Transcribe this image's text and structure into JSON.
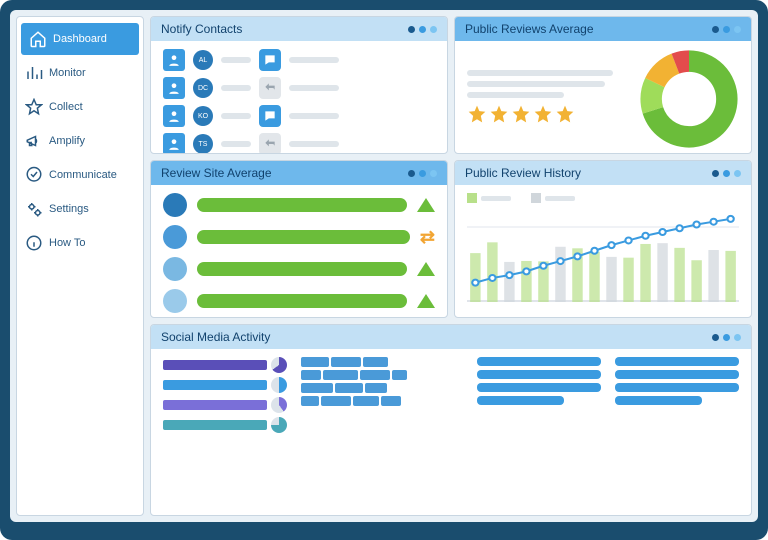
{
  "sidebar": {
    "items": [
      {
        "label": "Dashboard",
        "icon": "home",
        "active": true
      },
      {
        "label": "Monitor",
        "icon": "bars",
        "active": false
      },
      {
        "label": "Collect",
        "icon": "star",
        "active": false
      },
      {
        "label": "Amplify",
        "icon": "megaphone",
        "active": false
      },
      {
        "label": "Communicate",
        "icon": "chat-check",
        "active": false
      },
      {
        "label": "Settings",
        "icon": "gears",
        "active": false
      },
      {
        "label": "How To",
        "icon": "info",
        "active": false
      }
    ]
  },
  "panels": {
    "notify": {
      "title": "Notify Contacts",
      "contacts": [
        {
          "initials": "AL",
          "color": "#2a7ab8",
          "action": "chat"
        },
        {
          "initials": "DC",
          "color": "#2a7ab8",
          "action": "reply"
        },
        {
          "initials": "KO",
          "color": "#2a7ab8",
          "action": "chat"
        },
        {
          "initials": "TS",
          "color": "#2a7ab8",
          "action": "reply"
        }
      ]
    },
    "reviews_avg": {
      "title": "Public Reviews Average",
      "stars": 5,
      "star_color": "#f2b233",
      "donut": {
        "segments": [
          {
            "color": "#6bbd3a",
            "pct": 70
          },
          {
            "color": "#9fdc5a",
            "pct": 12
          },
          {
            "color": "#f2b233",
            "pct": 12
          },
          {
            "color": "#e34c4c",
            "pct": 6
          }
        ],
        "inner": "#ffffff"
      }
    },
    "site_avg": {
      "title": "Review Site Average",
      "rows": [
        {
          "circle": "#2a7ab8",
          "bar": "#6bbd3a",
          "trend": "up",
          "trend_color": "#6bbd3a"
        },
        {
          "circle": "#4a9ad8",
          "bar": "#6bbd3a",
          "trend": "flat",
          "trend_color": "#f2a533"
        },
        {
          "circle": "#7ab8e2",
          "bar": "#6bbd3a",
          "trend": "up",
          "trend_color": "#6bbd3a"
        },
        {
          "circle": "#9acaea",
          "bar": "#6bbd3a",
          "trend": "up",
          "trend_color": "#6bbd3a"
        }
      ]
    },
    "history": {
      "title": "Public Review History",
      "line_color": "#3a9be0",
      "bar_colors": [
        "#b8e08a",
        "#d0d6db"
      ],
      "points": [
        10,
        15,
        18,
        22,
        28,
        33,
        38,
        44,
        50,
        55,
        60,
        64,
        68,
        72,
        75,
        78
      ]
    },
    "social": {
      "title": "Social Media Activity",
      "colors": {
        "purple": "#5a4fb8",
        "blue": "#3a9be0",
        "teal": "#4aa8b8"
      }
    }
  }
}
